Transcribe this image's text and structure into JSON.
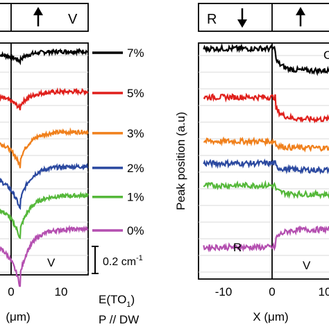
{
  "chart_data": [
    {
      "type": "line",
      "panel": "left",
      "header": {
        "left_domain_label": "",
        "right_domain_arrow": "up",
        "right_domain_label": "V"
      },
      "domain_labels": {
        "right": "V"
      },
      "xlabel": "(μm)",
      "xticks": [
        "0",
        "10"
      ],
      "xlim": [
        -4,
        15
      ],
      "ylabel": "",
      "scale_bar": {
        "value": 0.2,
        "label": "0.2 cm",
        "superscript": "-1"
      },
      "annotation": {
        "mode": "E(TO",
        "subscript": "1",
        "close": ")",
        "geometry": "P // DW"
      },
      "series": [
        {
          "name": "7%",
          "color": "#000000",
          "baseline": 1.0,
          "dip": 0.035,
          "step": 0.0
        },
        {
          "name": "5%",
          "color": "#e0201c",
          "baseline": 0.82,
          "dip": 0.06,
          "step": 0.01
        },
        {
          "name": "3%",
          "color": "#f0801c",
          "baseline": 0.64,
          "dip": 0.12,
          "step": 0.0
        },
        {
          "name": "2%",
          "color": "#2b49a0",
          "baseline": 0.485,
          "dip": 0.15,
          "step": 0.0
        },
        {
          "name": "1%",
          "color": "#55b83a",
          "baseline": 0.355,
          "dip": 0.15,
          "step": 0.0
        },
        {
          "name": "0%",
          "color": "#b44fb0",
          "baseline": 0.205,
          "dip": 0.2,
          "step": 0.0
        }
      ]
    },
    {
      "type": "line",
      "panel": "right",
      "header": {
        "left_domain_label": "R",
        "left_domain_arrow": "down",
        "right_domain_arrow": "up"
      },
      "domain_labels": {
        "left": "R",
        "right": "V"
      },
      "xlabel": "X (μm)",
      "xticks": [
        "-10",
        "0",
        "10"
      ],
      "xlim": [
        -15,
        12
      ],
      "ylabel": "Peak position (a.u)",
      "series": [
        {
          "name": "7%",
          "color": "#000000",
          "left": 1.0,
          "right": 0.9
        },
        {
          "name": "5%",
          "color": "#e0201c",
          "left": 0.78,
          "right": 0.68
        },
        {
          "name": "3%",
          "color": "#f0801c",
          "left": 0.58,
          "right": 0.55
        },
        {
          "name": "2%",
          "color": "#2b49a0",
          "left": 0.48,
          "right": 0.45
        },
        {
          "name": "1%",
          "color": "#55b83a",
          "left": 0.38,
          "right": 0.34
        },
        {
          "name": "0%",
          "color": "#b44fb0",
          "left": 0.1,
          "right": 0.18
        }
      ]
    }
  ],
  "partial_labels": {
    "right_panel_top": "C"
  }
}
